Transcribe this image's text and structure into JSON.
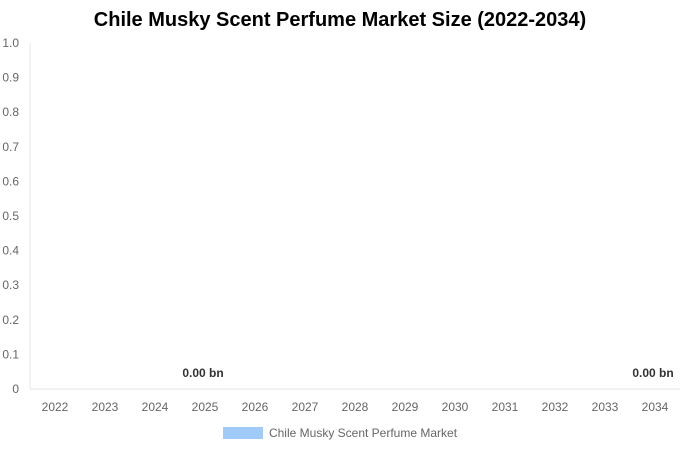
{
  "chart_data": {
    "type": "bar",
    "title": "Chile Musky Scent Perfume Market Size (2022-2034)",
    "categories": [
      "2022",
      "2023",
      "2024",
      "2025",
      "2026",
      "2027",
      "2028",
      "2029",
      "2030",
      "2031",
      "2032",
      "2033",
      "2034"
    ],
    "series": [
      {
        "name": "Chile Musky Scent Perfume Market",
        "values": [
          0,
          0,
          0,
          0,
          0,
          0,
          0,
          0,
          0,
          0,
          0,
          0,
          0
        ],
        "color": "#a0cbf8"
      }
    ],
    "data_labels": [
      {
        "category": "2025",
        "text": "0.00 bn"
      },
      {
        "category": "2034",
        "text": "0.00 bn"
      }
    ],
    "yticks": [
      "0",
      "0.1",
      "0.2",
      "0.3",
      "0.4",
      "0.5",
      "0.6",
      "0.7",
      "0.8",
      "0.9",
      "1.0"
    ],
    "ylim": [
      0,
      1
    ],
    "xlabel": "",
    "ylabel": "",
    "grid": false,
    "legend_position": "bottom"
  }
}
